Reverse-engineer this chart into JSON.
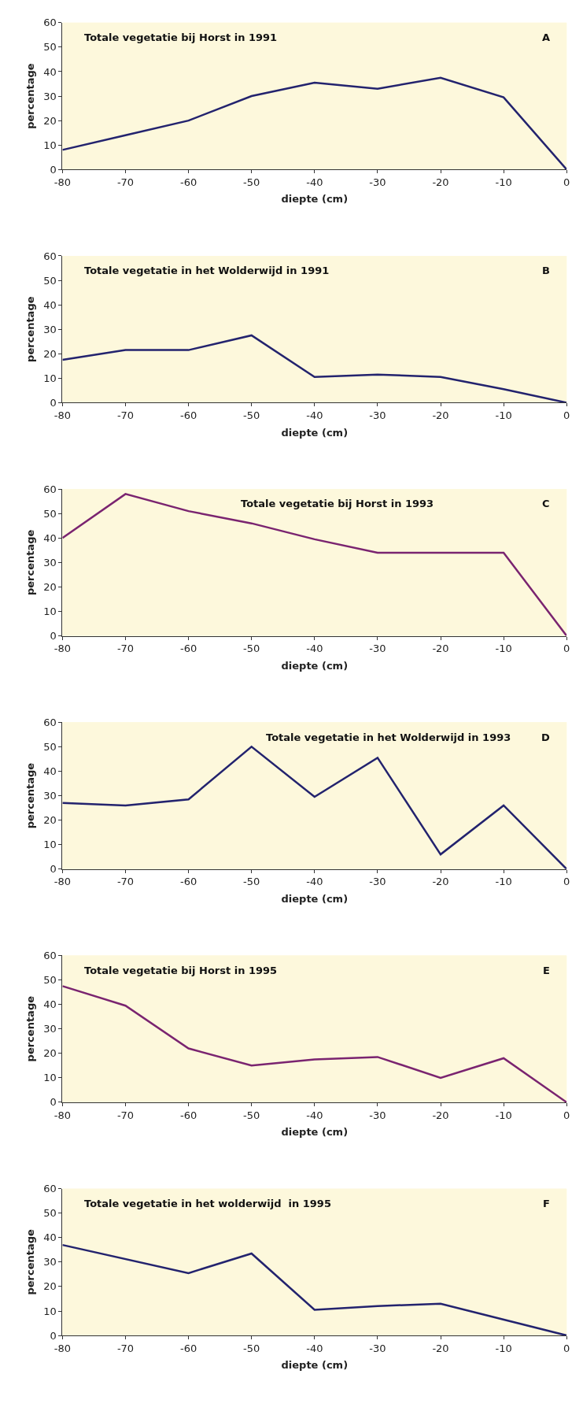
{
  "chart_data": [
    {
      "type": "line",
      "title": "Totale vegetatie bij Horst in 1991",
      "annotations": [
        "A"
      ],
      "xlabel": "diepte (cm)",
      "ylabel": "percentage",
      "x": [
        -80,
        -70,
        -60,
        -50,
        -40,
        -30,
        -20,
        -10,
        0
      ],
      "xlim": [
        -80,
        0
      ],
      "xticks": [
        -80,
        -70,
        -60,
        -50,
        -40,
        -30,
        -20,
        -10,
        0
      ],
      "ylim": [
        0,
        60
      ],
      "yticks": [
        0,
        10,
        20,
        30,
        40,
        50,
        60
      ],
      "grid": false,
      "series": [
        {
          "color": "#23236e",
          "values": [
            8,
            14,
            20,
            30,
            35.5,
            33,
            37.5,
            29.5,
            0
          ]
        }
      ]
    },
    {
      "type": "line",
      "title": "Totale vegetatie in het Wolderwijd in 1991",
      "annotations": [
        "B"
      ],
      "xlabel": "diepte (cm)",
      "ylabel": "percentage",
      "x": [
        -80,
        -70,
        -60,
        -50,
        -40,
        -30,
        -20,
        -10,
        0
      ],
      "xlim": [
        -80,
        0
      ],
      "xticks": [
        -80,
        -70,
        -60,
        -50,
        -40,
        -30,
        -20,
        -10,
        0
      ],
      "ylim": [
        0,
        60
      ],
      "yticks": [
        0,
        10,
        20,
        30,
        40,
        50,
        60
      ],
      "grid": false,
      "series": [
        {
          "color": "#23236e",
          "values": [
            17.5,
            21.5,
            21.5,
            27.5,
            10.5,
            11.5,
            10.5,
            5.5,
            0
          ]
        }
      ]
    },
    {
      "type": "line",
      "title": "Totale vegetatie bij Horst in 1993",
      "annotations": [
        "C"
      ],
      "xlabel": "diepte (cm)",
      "ylabel": "percentage",
      "x": [
        -80,
        -70,
        -60,
        -50,
        -40,
        -30,
        -20,
        -10,
        0
      ],
      "xlim": [
        -80,
        0
      ],
      "xticks": [
        -80,
        -70,
        -60,
        -50,
        -40,
        -30,
        -20,
        -10,
        0
      ],
      "ylim": [
        0,
        60
      ],
      "yticks": [
        0,
        10,
        20,
        30,
        40,
        50,
        60
      ],
      "grid": false,
      "series": [
        {
          "color": "#7a2470",
          "values": [
            40,
            58,
            51,
            46,
            39.5,
            34,
            34,
            34,
            0
          ]
        }
      ]
    },
    {
      "type": "line",
      "title": "Totale vegetatie in het Wolderwijd in 1993",
      "annotations": [
        "D"
      ],
      "xlabel": "diepte (cm)",
      "ylabel": "percentage",
      "x": [
        -80,
        -70,
        -60,
        -50,
        -40,
        -30,
        -20,
        -10,
        0
      ],
      "xlim": [
        -80,
        0
      ],
      "xticks": [
        -80,
        -70,
        -60,
        -50,
        -40,
        -30,
        -20,
        -10,
        0
      ],
      "ylim": [
        0,
        60
      ],
      "yticks": [
        0,
        10,
        20,
        30,
        40,
        50,
        60
      ],
      "grid": false,
      "series": [
        {
          "color": "#23236e",
          "values": [
            27,
            26,
            28.5,
            50,
            29.5,
            45.5,
            6,
            26,
            0
          ]
        }
      ]
    },
    {
      "type": "line",
      "title": "Totale vegetatie bij Horst in 1995",
      "annotations": [
        "E"
      ],
      "xlabel": "diepte (cm)",
      "ylabel": "percentage",
      "x": [
        -80,
        -70,
        -60,
        -50,
        -40,
        -30,
        -20,
        -10,
        0
      ],
      "xlim": [
        -80,
        0
      ],
      "xticks": [
        -80,
        -70,
        -60,
        -50,
        -40,
        -30,
        -20,
        -10,
        0
      ],
      "ylim": [
        0,
        60
      ],
      "yticks": [
        0,
        10,
        20,
        30,
        40,
        50,
        60
      ],
      "grid": false,
      "series": [
        {
          "color": "#7a2470",
          "values": [
            47.5,
            39.5,
            22,
            15,
            17.5,
            18.5,
            10,
            18,
            0
          ]
        }
      ]
    },
    {
      "type": "line",
      "title": "Totale vegetatie in het wolderwijd  in 1995",
      "annotations": [
        "F"
      ],
      "xlabel": "diepte (cm)",
      "ylabel": "percentage",
      "x": [
        -80,
        -60,
        -50,
        -40,
        -30,
        -20,
        0
      ],
      "xlim": [
        -80,
        0
      ],
      "xticks": [
        -80,
        -70,
        -60,
        -50,
        -40,
        -30,
        -20,
        -10,
        0
      ],
      "ylim": [
        0,
        60
      ],
      "yticks": [
        0,
        10,
        20,
        30,
        40,
        50,
        60
      ],
      "grid": false,
      "series": [
        {
          "color": "#23236e",
          "values": [
            37,
            25.5,
            33.5,
            10.5,
            12,
            13,
            0
          ]
        }
      ]
    }
  ]
}
